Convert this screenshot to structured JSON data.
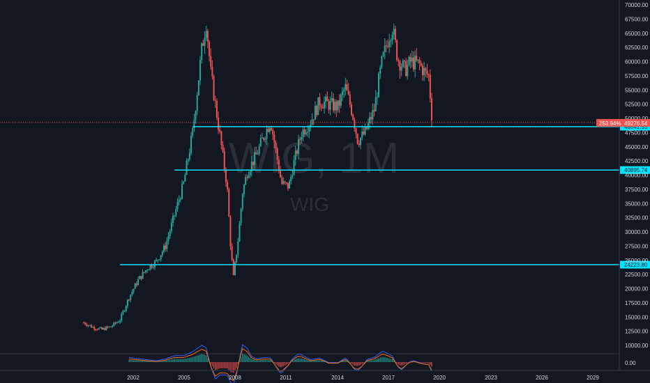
{
  "watermark": {
    "main": "WIG, 1M",
    "sub": "WIG"
  },
  "colors": {
    "background": "#131722",
    "up": "#26a69a",
    "down": "#ef5350",
    "level": "#00e5ff",
    "grid": "#363a45",
    "text": "#d1d4dc",
    "price_label_bg": "#ef5350"
  },
  "price_axis": {
    "labels": [
      "70000.00",
      "67500.00",
      "65000.00",
      "62500.00",
      "60000.00",
      "57500.00",
      "55000.00",
      "52500.00",
      "50000.00",
      "47500.00",
      "45000.00",
      "42500.00",
      "40000.00",
      "37500.00",
      "35000.00",
      "32500.00",
      "30000.00",
      "27500.00",
      "25000.00",
      "22500.00",
      "20000.00",
      "17500.00",
      "15000.00",
      "12500.00",
      "10000.00"
    ],
    "min": 10000,
    "max": 70000,
    "current_price": "49276.54",
    "current_change": "253.94%",
    "oscillator_label": "0.00"
  },
  "time_axis": {
    "labels": [
      "2002",
      "2005",
      "2008",
      "2011",
      "2014",
      "2017",
      "2020",
      "2023",
      "2026",
      "2029"
    ],
    "range": [
      "2001.0",
      "2030.5"
    ]
  },
  "chart_data": {
    "type": "candlestick",
    "title": "WIG, 1M",
    "subtitle": "WIG",
    "interval": "1M",
    "ylim": [
      10000,
      70000
    ],
    "xlim": [
      2001.0,
      2030.5
    ],
    "closes": [
      [
        2001.0,
        14000
      ],
      [
        2001.5,
        13200
      ],
      [
        2002.0,
        12800
      ],
      [
        2002.5,
        13300
      ],
      [
        2003.0,
        14500
      ],
      [
        2003.5,
        18500
      ],
      [
        2004.0,
        21500
      ],
      [
        2004.5,
        23600
      ],
      [
        2005.0,
        24800
      ],
      [
        2005.5,
        27500
      ],
      [
        2006.0,
        33000
      ],
      [
        2006.5,
        38500
      ],
      [
        2007.0,
        47500
      ],
      [
        2007.5,
        62000
      ],
      [
        2007.75,
        67000
      ],
      [
        2008.0,
        58000
      ],
      [
        2008.5,
        47000
      ],
      [
        2008.9,
        38000
      ],
      [
        2009.1,
        27000
      ],
      [
        2009.25,
        22000
      ],
      [
        2009.5,
        28500
      ],
      [
        2009.75,
        37000
      ],
      [
        2010.0,
        40500
      ],
      [
        2010.5,
        43500
      ],
      [
        2011.0,
        47500
      ],
      [
        2011.3,
        49500
      ],
      [
        2011.6,
        44000
      ],
      [
        2011.9,
        38500
      ],
      [
        2012.3,
        38000
      ],
      [
        2012.6,
        42500
      ],
      [
        2013.0,
        47500
      ],
      [
        2013.5,
        49500
      ],
      [
        2014.0,
        53000
      ],
      [
        2014.5,
        52500
      ],
      [
        2015.0,
        52000
      ],
      [
        2015.4,
        55500
      ],
      [
        2015.8,
        51000
      ],
      [
        2016.1,
        46000
      ],
      [
        2016.5,
        47500
      ],
      [
        2017.0,
        51500
      ],
      [
        2017.4,
        59500
      ],
      [
        2017.8,
        64500
      ],
      [
        2018.0,
        66000
      ],
      [
        2018.3,
        60500
      ],
      [
        2018.7,
        58500
      ],
      [
        2019.0,
        60000
      ],
      [
        2019.5,
        59500
      ],
      [
        2019.8,
        58000
      ],
      [
        2020.0,
        57500
      ],
      [
        2020.2,
        49300
      ]
    ],
    "levels": [
      {
        "value": 48541.53,
        "label": "48541.53",
        "from": 2007.0
      },
      {
        "value": 40895.74,
        "label": "40895.74",
        "from": 2006.0
      },
      {
        "value": 24223.8,
        "label": "24223.80",
        "from": 2003.0
      }
    ]
  }
}
